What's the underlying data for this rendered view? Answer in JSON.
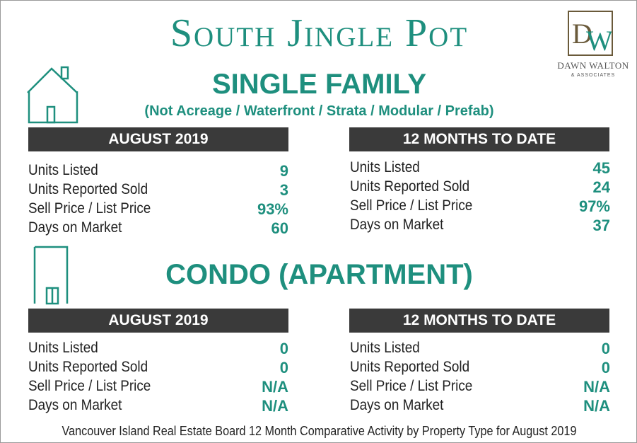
{
  "title": "South Jingle Pot",
  "logo": {
    "monogram": "DW",
    "name": "DAWN WALTON",
    "sub": "& ASSOCIATES"
  },
  "single_family": {
    "title": "SINGLE FAMILY",
    "subtitle": "(Not Acreage / Waterfront / Strata / Modular / Prefab)",
    "icon": "house-icon",
    "month": {
      "header": "AUGUST 2019",
      "rows": [
        {
          "label": "Units Listed",
          "value": "9"
        },
        {
          "label": "Units Reported Sold",
          "value": "3"
        },
        {
          "label": "Sell Price / List Price",
          "value": "93%"
        },
        {
          "label": "Days on Market",
          "value": "60"
        }
      ]
    },
    "ytd": {
      "header": "12 MONTHS TO DATE",
      "rows": [
        {
          "label": "Units Listed",
          "value": "45"
        },
        {
          "label": "Units Reported Sold",
          "value": "24"
        },
        {
          "label": "Sell Price / List Price",
          "value": "97%"
        },
        {
          "label": "Days on Market",
          "value": "37"
        }
      ]
    }
  },
  "condo": {
    "title": "CONDO (APARTMENT)",
    "icon": "building-icon",
    "month": {
      "header": "AUGUST 2019",
      "rows": [
        {
          "label": "Units Listed",
          "value": "0"
        },
        {
          "label": "Units Reported Sold",
          "value": "0"
        },
        {
          "label": "Sell Price / List Price",
          "value": "N/A"
        },
        {
          "label": "Days on Market",
          "value": "N/A"
        }
      ]
    },
    "ytd": {
      "header": "12 MONTHS TO DATE",
      "rows": [
        {
          "label": "Units Listed",
          "value": "0"
        },
        {
          "label": "Units Reported Sold",
          "value": "0"
        },
        {
          "label": "Sell Price / List Price",
          "value": "N/A"
        },
        {
          "label": "Days on Market",
          "value": "N/A"
        }
      ]
    }
  },
  "footer": "Vancouver Island Real Estate Board 12 Month Comparative Activity by Property Type for August 2019",
  "colors": {
    "accent": "#1e8f7e",
    "bar": "#3a3a3a",
    "text": "#222222"
  }
}
